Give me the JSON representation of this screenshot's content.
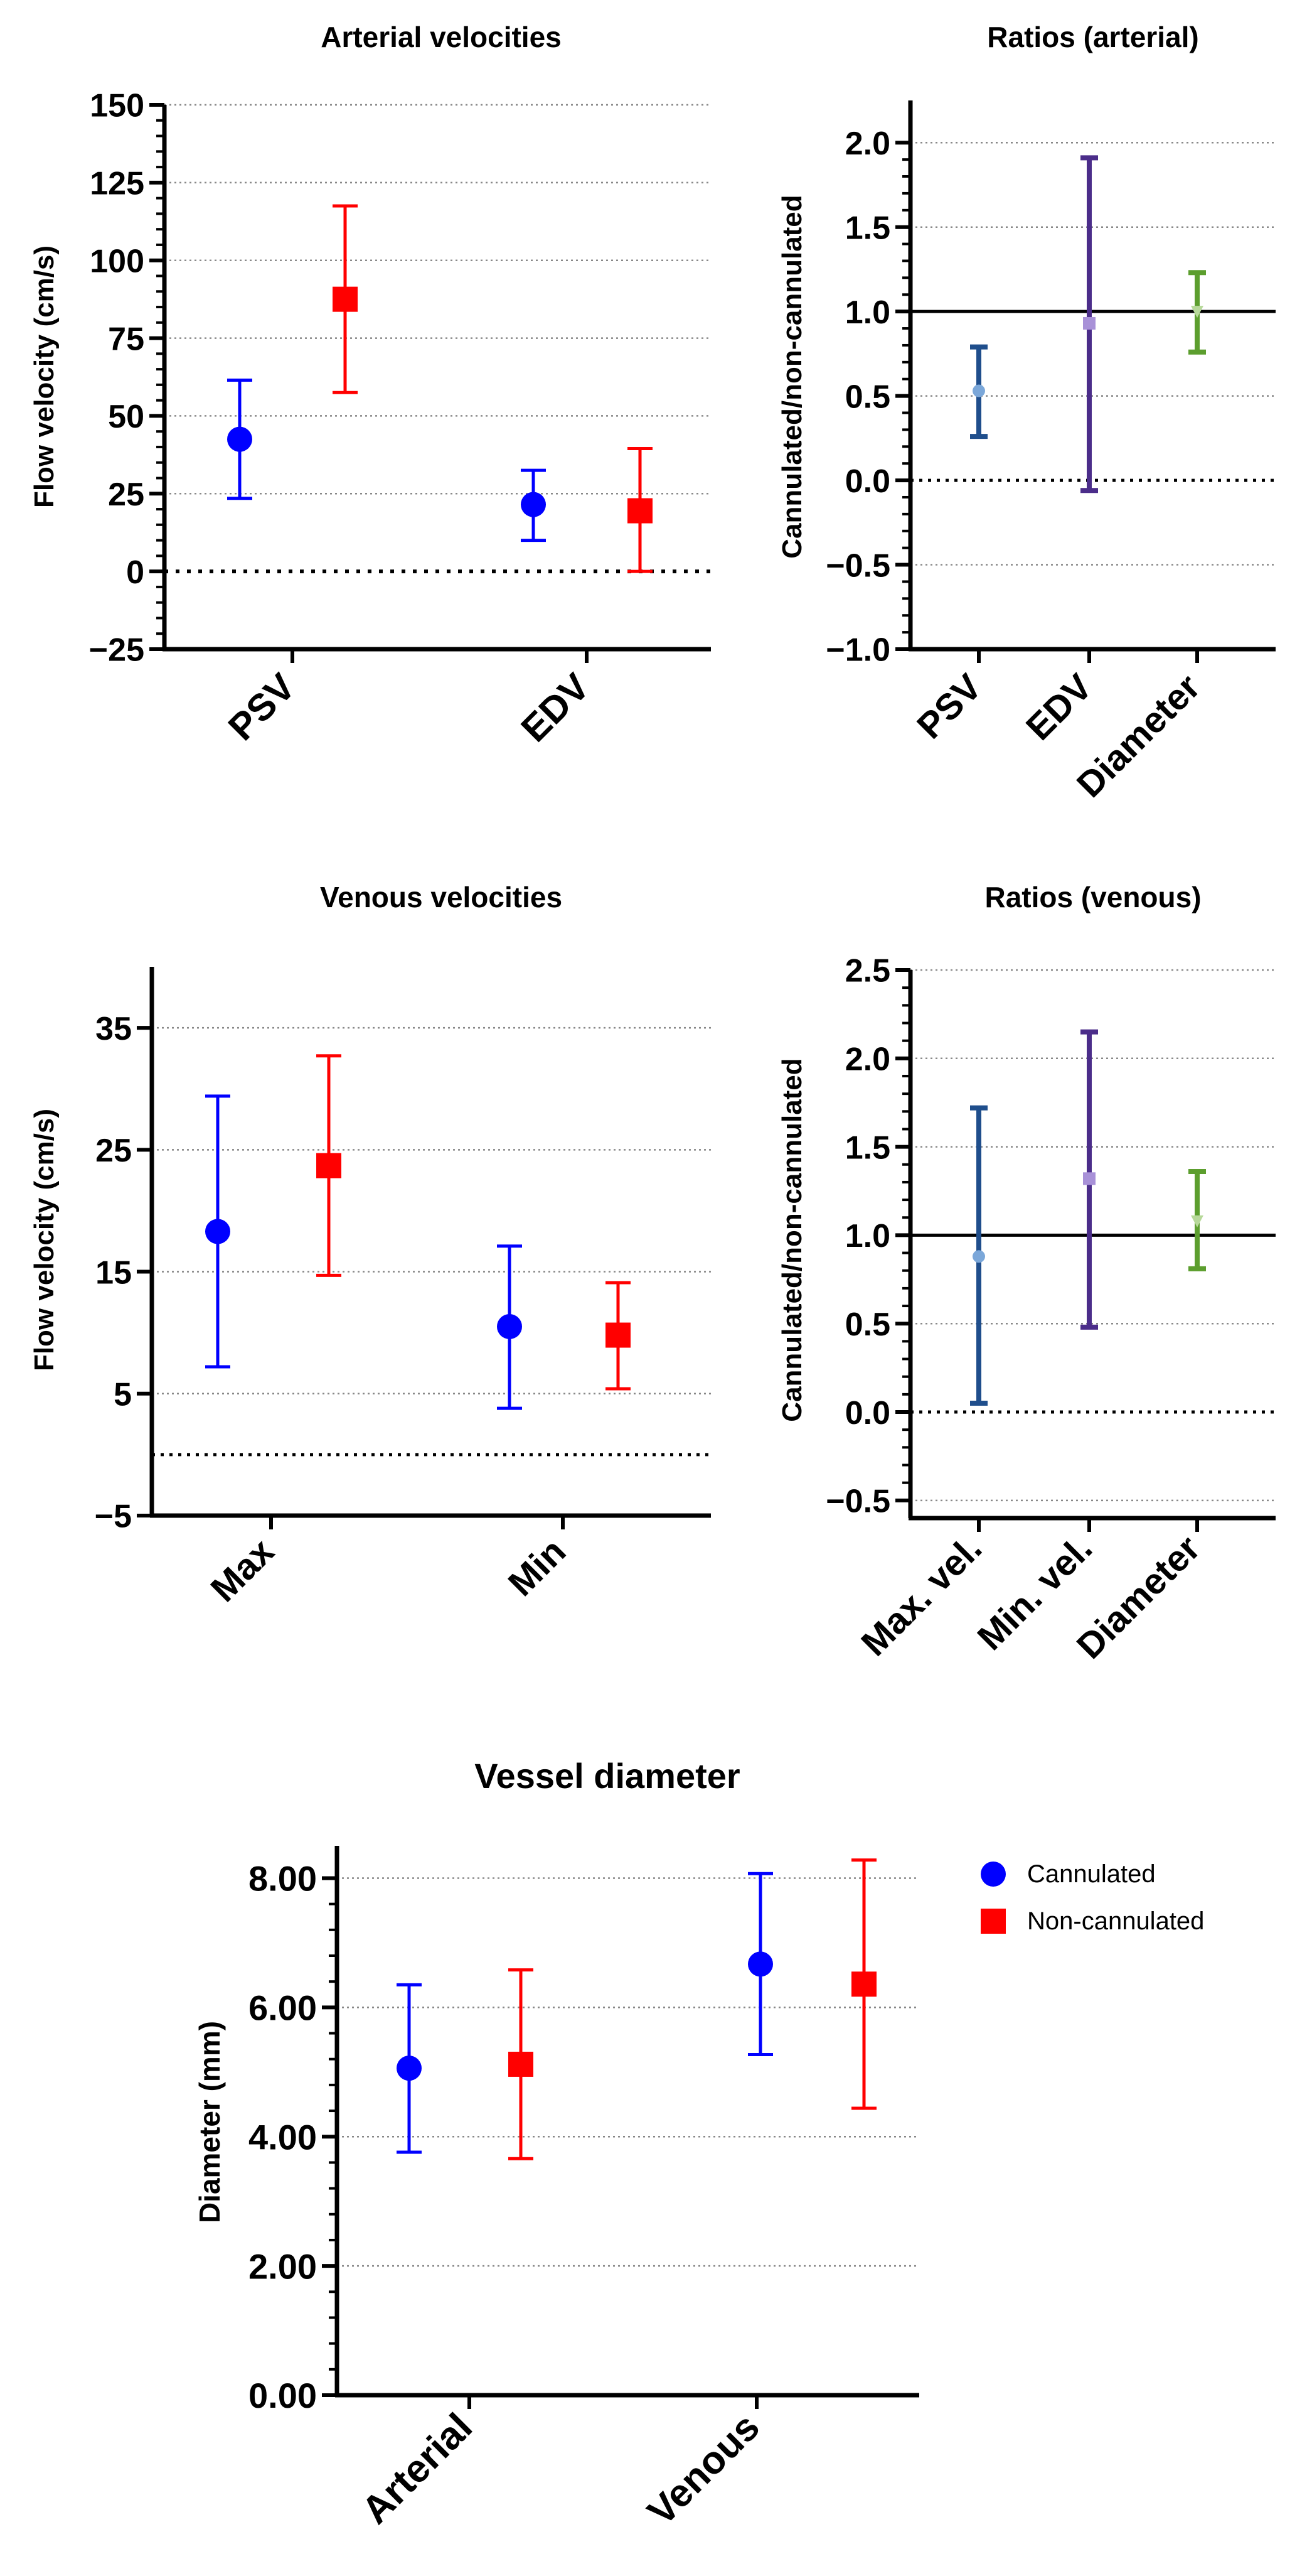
{
  "colors": {
    "cannulated": "#0000FF",
    "non_cannulated": "#FF0000",
    "steel_blue": "#1F4E8C",
    "light_blue_point": "#7BA7D9",
    "purple": "#4B2D8A",
    "light_purple_point": "#A891D8",
    "green": "#5C9E2E",
    "light_green_point": "#B7D99A"
  },
  "legend": {
    "cannulated": "Cannulated",
    "non_cannulated": "Non-cannulated"
  },
  "chart_data": [
    {
      "id": "arterial_velocities",
      "type": "scatter",
      "title": "Arterial velocities",
      "ylabel": "Flow velocity (cm/s)",
      "xlabel": "",
      "ylim": [
        -25,
        150
      ],
      "yticks": [
        -25,
        0,
        25,
        50,
        75,
        100,
        125,
        150
      ],
      "ytick_labels": [
        "−25",
        "0",
        "25",
        "50",
        "75",
        "100",
        "125",
        "150"
      ],
      "grid_lines": [
        25,
        50,
        75,
        100,
        125,
        150
      ],
      "reference_line": 0,
      "categories": [
        "PSV",
        "EDV"
      ],
      "series": [
        {
          "name": "Cannulated",
          "marker": "circle",
          "color": "#0000FF",
          "values": [
            42.5,
            21.5
          ],
          "lower": [
            23.5,
            10
          ],
          "upper": [
            61.5,
            32.5
          ]
        },
        {
          "name": "Non-cannulated",
          "marker": "square",
          "color": "#FF0000",
          "values": [
            87.5,
            19.5
          ],
          "lower": [
            57.5,
            0
          ],
          "upper": [
            117.5,
            39.5
          ]
        }
      ]
    },
    {
      "id": "ratios_arterial",
      "type": "scatter",
      "title": "Ratios (arterial)",
      "ylabel": "Cannulated/non-cannulated",
      "xlabel": "",
      "ylim": [
        -1.0,
        2.25
      ],
      "yticks": [
        -1.0,
        -0.5,
        0.0,
        0.5,
        1.0,
        1.5,
        2.0
      ],
      "ytick_labels": [
        "−1.0",
        "−0.5",
        "0.0",
        "0.5",
        "1.0",
        "1.5",
        "2.0"
      ],
      "grid_lines": [
        -0.5,
        0.5,
        1.5,
        2.0
      ],
      "reference_line": 1.0,
      "dotted_line": 0.0,
      "categories": [
        "PSV",
        "EDV",
        "Diameter"
      ],
      "points": [
        {
          "value": 0.53,
          "lower": 0.26,
          "upper": 0.79,
          "color": "#1F4E8C",
          "marker_color": "#7BA7D9",
          "marker": "circle"
        },
        {
          "value": 0.93,
          "lower": -0.06,
          "upper": 1.91,
          "color": "#4B2D8A",
          "marker_color": "#A891D8",
          "marker": "square"
        },
        {
          "value": 1.0,
          "lower": 0.76,
          "upper": 1.23,
          "color": "#5C9E2E",
          "marker_color": "#B7D99A",
          "marker": "triangle"
        }
      ]
    },
    {
      "id": "venous_velocities",
      "type": "scatter",
      "title": "Venous velocities",
      "ylabel": "Flow velocity (cm/s)",
      "xlabel": "",
      "ylim": [
        -5,
        40
      ],
      "yticks": [
        -5,
        5,
        15,
        25,
        35
      ],
      "ytick_labels": [
        "−5",
        "5",
        "15",
        "25",
        "35"
      ],
      "grid_lines": [
        5,
        15,
        25,
        35
      ],
      "dotted_line": 0,
      "categories": [
        "Max",
        "Min"
      ],
      "series": [
        {
          "name": "Cannulated",
          "marker": "circle",
          "color": "#0000FF",
          "values": [
            18.3,
            10.5
          ],
          "lower": [
            7.2,
            3.8
          ],
          "upper": [
            29.4,
            17.1
          ]
        },
        {
          "name": "Non-cannulated",
          "marker": "square",
          "color": "#FF0000",
          "values": [
            23.7,
            9.8
          ],
          "lower": [
            14.7,
            5.4
          ],
          "upper": [
            32.7,
            14.1
          ]
        }
      ]
    },
    {
      "id": "ratios_venous",
      "type": "scatter",
      "title": "Ratios (venous)",
      "ylabel": "Cannulated/non-cannulated",
      "xlabel": "",
      "ylim": [
        -0.6,
        2.5
      ],
      "yticks": [
        -0.5,
        0.0,
        0.5,
        1.0,
        1.5,
        2.0,
        2.5
      ],
      "ytick_labels": [
        "−0.5",
        "0.0",
        "0.5",
        "1.0",
        "1.5",
        "2.0",
        "2.5"
      ],
      "grid_lines": [
        -0.5,
        0.5,
        1.5,
        2.0,
        2.5
      ],
      "reference_line": 1.0,
      "dotted_line": 0.0,
      "categories": [
        "Max. vel.",
        "Min. vel.",
        "Diameter"
      ],
      "points": [
        {
          "value": 0.88,
          "lower": 0.05,
          "upper": 1.72,
          "color": "#1F4E8C",
          "marker_color": "#7BA7D9",
          "marker": "circle"
        },
        {
          "value": 1.32,
          "lower": 0.48,
          "upper": 2.15,
          "color": "#4B2D8A",
          "marker_color": "#A891D8",
          "marker": "square"
        },
        {
          "value": 1.08,
          "lower": 0.81,
          "upper": 1.36,
          "color": "#5C9E2E",
          "marker_color": "#B7D99A",
          "marker": "triangle"
        }
      ]
    },
    {
      "id": "vessel_diameter",
      "type": "scatter",
      "title": "Vessel diameter",
      "ylabel": "Diameter (mm)",
      "xlabel": "",
      "ylim": [
        0,
        8.5
      ],
      "yticks": [
        0,
        2,
        4,
        6,
        8
      ],
      "ytick_labels": [
        "0.00",
        "2.00",
        "4.00",
        "6.00",
        "8.00"
      ],
      "grid_lines": [
        2,
        4,
        6,
        8
      ],
      "categories": [
        "Arterial",
        "Venous"
      ],
      "series": [
        {
          "name": "Cannulated",
          "marker": "circle",
          "color": "#0000FF",
          "values": [
            5.06,
            6.67
          ],
          "lower": [
            3.76,
            5.27
          ],
          "upper": [
            6.35,
            8.07
          ]
        },
        {
          "name": "Non-cannulated",
          "marker": "square",
          "color": "#FF0000",
          "values": [
            5.12,
            6.36
          ],
          "lower": [
            3.66,
            4.44
          ],
          "upper": [
            6.58,
            8.28
          ]
        }
      ]
    }
  ]
}
